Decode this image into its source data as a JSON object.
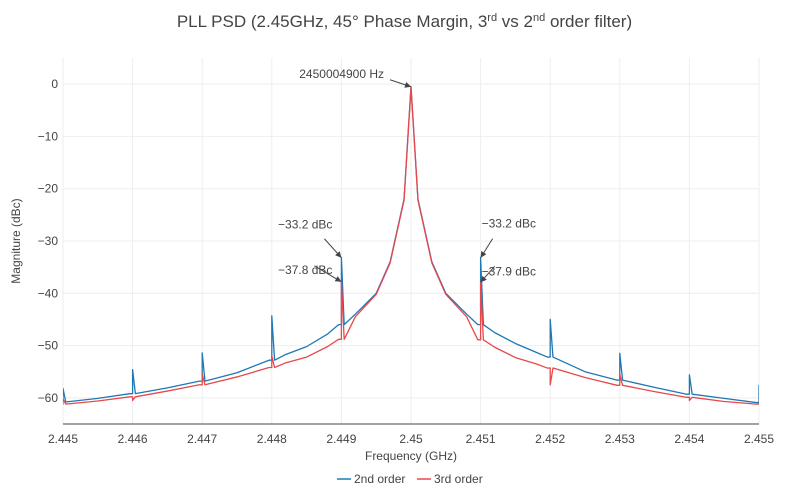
{
  "chart_data": {
    "type": "line",
    "title": "PLL PSD (2.45GHz, 45° Phase Margin, 3rd vs 2nd order filter)",
    "title_parts": [
      {
        "text": "PLL PSD (2.45GHz, 45° Phase Margin, 3",
        "sup": false
      },
      {
        "text": "rd",
        "sup": true
      },
      {
        "text": " vs 2",
        "sup": false
      },
      {
        "text": "nd",
        "sup": true
      },
      {
        "text": " order filter)",
        "sup": false
      }
    ],
    "xlabel": "Frequency (GHz)",
    "ylabel": "Magniture (dBc)",
    "xlim": [
      2.445,
      2.455
    ],
    "ylim": [
      -65,
      5
    ],
    "xticks": [
      2.445,
      2.446,
      2.447,
      2.448,
      2.449,
      2.45,
      2.451,
      2.452,
      2.453,
      2.454,
      2.455
    ],
    "xtick_labels": [
      "2.445",
      "2.446",
      "2.447",
      "2.448",
      "2.449",
      "2.45",
      "2.451",
      "2.452",
      "2.453",
      "2.454",
      "2.455"
    ],
    "yticks": [
      0,
      -10,
      -20,
      -30,
      -40,
      -50,
      -60
    ],
    "ytick_labels": [
      "0",
      "−10",
      "−20",
      "−30",
      "−40",
      "−50",
      "−60"
    ],
    "grid": true,
    "legend_position": "bottom-center",
    "series": [
      {
        "name": "2nd order",
        "color": "#1f77b4",
        "x": [
          2.445,
          2.4455,
          2.446,
          2.4465,
          2.447,
          2.4475,
          2.448,
          2.4482,
          2.4485,
          2.4488,
          2.449,
          2.4492,
          2.4495,
          2.4497,
          2.4499,
          2.45,
          2.4501,
          2.4503,
          2.4505,
          2.4508,
          2.451,
          2.4512,
          2.4515,
          2.4518,
          2.452,
          2.4525,
          2.453,
          2.4535,
          2.454,
          2.4545,
          2.455
        ],
        "y": [
          -60.8,
          -60.1,
          -59.2,
          -58.1,
          -56.8,
          -55.2,
          -52.8,
          -51.7,
          -50.2,
          -47.8,
          -46.0,
          -44.0,
          -40.0,
          -34.0,
          -22.0,
          -0.5,
          -22.0,
          -34.0,
          -40.0,
          -44.0,
          -46.0,
          -47.5,
          -49.6,
          -51.3,
          -52.2,
          -55.0,
          -56.6,
          -58.0,
          -59.3,
          -60.1,
          -60.9
        ],
        "spikes": [
          {
            "x": 2.445,
            "y": -58.2
          },
          {
            "x": 2.446,
            "y": -54.6
          },
          {
            "x": 2.447,
            "y": -51.4
          },
          {
            "x": 2.448,
            "y": -44.3
          },
          {
            "x": 2.449,
            "y": -33.2
          },
          {
            "x": 2.451,
            "y": -33.2
          },
          {
            "x": 2.452,
            "y": -45.0
          },
          {
            "x": 2.453,
            "y": -51.5
          },
          {
            "x": 2.454,
            "y": -55.6
          },
          {
            "x": 2.455,
            "y": -57.6
          }
        ]
      },
      {
        "name": "3rd order",
        "color": "#e8474c",
        "x": [
          2.445,
          2.4455,
          2.446,
          2.4465,
          2.447,
          2.4475,
          2.448,
          2.4482,
          2.4485,
          2.4488,
          2.449,
          2.4492,
          2.4495,
          2.4497,
          2.4499,
          2.45,
          2.4501,
          2.4503,
          2.4505,
          2.4508,
          2.451,
          2.4512,
          2.4515,
          2.4518,
          2.452,
          2.4525,
          2.453,
          2.4535,
          2.454,
          2.4545,
          2.455
        ],
        "y": [
          -61.2,
          -60.6,
          -59.8,
          -58.7,
          -57.5,
          -56.0,
          -54.2,
          -53.3,
          -52.2,
          -50.2,
          -48.8,
          -44.5,
          -40.2,
          -34.2,
          -22.2,
          -0.6,
          -22.2,
          -34.2,
          -40.2,
          -44.5,
          -48.9,
          -50.3,
          -52.3,
          -53.5,
          -54.3,
          -56.1,
          -57.6,
          -58.8,
          -59.9,
          -60.7,
          -61.2
        ],
        "spikes": [
          {
            "x": 2.445,
            "y": -60.2
          },
          {
            "x": 2.446,
            "y": -60.5
          },
          {
            "x": 2.447,
            "y": -55.5
          },
          {
            "x": 2.448,
            "y": -52.0
          },
          {
            "x": 2.449,
            "y": -37.8
          },
          {
            "x": 2.451,
            "y": -37.9
          },
          {
            "x": 2.452,
            "y": -57.5
          },
          {
            "x": 2.453,
            "y": -55.5
          },
          {
            "x": 2.454,
            "y": -60.5
          },
          {
            "x": 2.455,
            "y": -61.0
          }
        ]
      }
    ],
    "annotations": [
      {
        "text": "2450004900 Hz",
        "x": 2.45,
        "y": -0.5
      },
      {
        "text": "−33.2 dBc",
        "x": 2.449,
        "y": -33.2
      },
      {
        "text": "−37.8 dBc",
        "x": 2.449,
        "y": -37.8
      },
      {
        "text": "−33.2 dBc",
        "x": 2.451,
        "y": -33.2
      },
      {
        "text": "−37.9 dBc",
        "x": 2.451,
        "y": -37.9
      }
    ]
  }
}
